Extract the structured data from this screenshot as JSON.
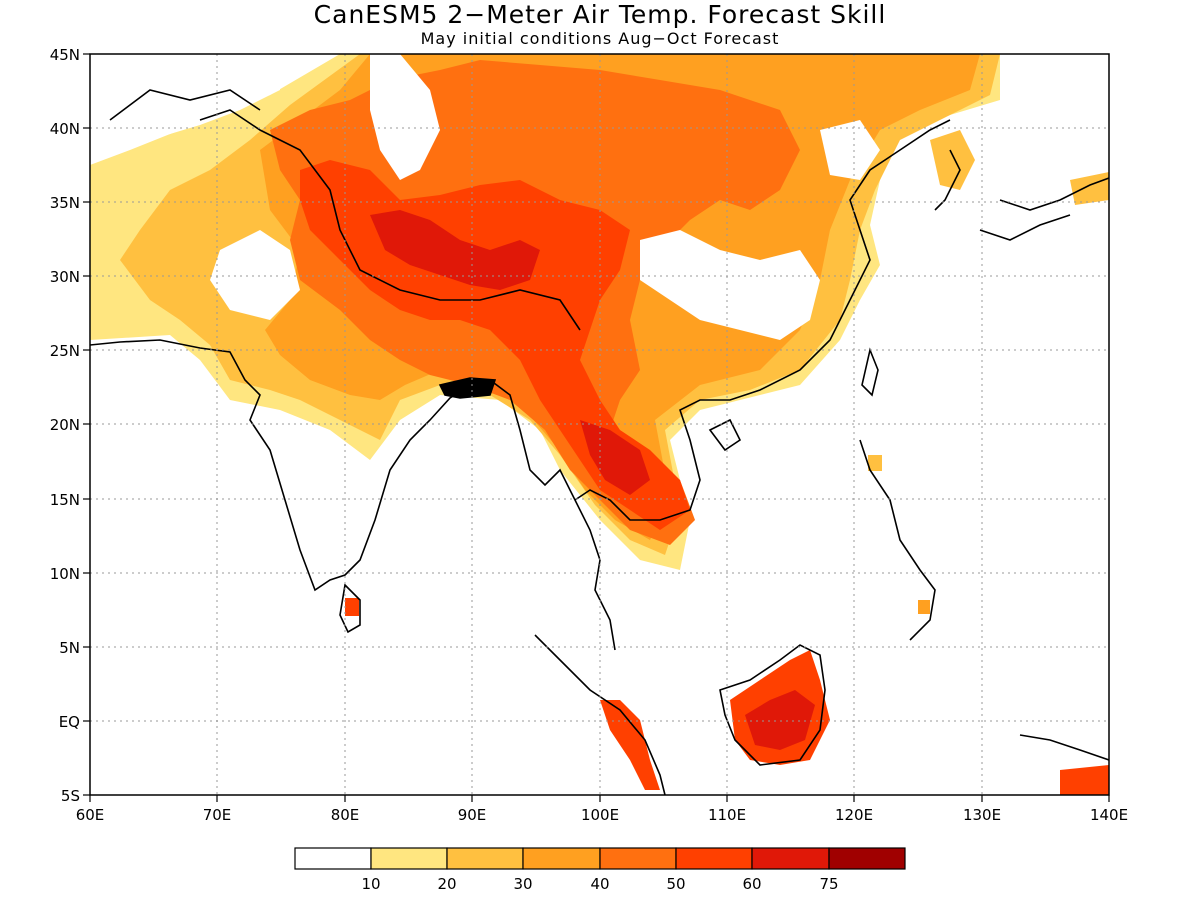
{
  "map": {
    "title": "CanESM5 2−Meter Air Temp. Forecast Skill",
    "subtitle": "May initial conditions  Aug−Oct Forecast",
    "lon_range": [
      60,
      140
    ],
    "lat_range": [
      -5,
      45
    ],
    "lon_ticks": [
      "60E",
      "70E",
      "80E",
      "90E",
      "100E",
      "110E",
      "120E",
      "130E",
      "140E"
    ],
    "lat_ticks": [
      "45N",
      "40N",
      "35N",
      "30N",
      "25N",
      "20N",
      "15N",
      "10N",
      "5N",
      "EQ",
      "5S"
    ],
    "grid": true,
    "colorbar": {
      "labels": [
        "10",
        "20",
        "30",
        "40",
        "50",
        "60",
        "75"
      ],
      "colors": [
        "#ffffff",
        "#ffe680",
        "#ffc040",
        "#ffa020",
        "#ff7010",
        "#ff4000",
        "#e01808",
        "#a00000"
      ]
    },
    "skill_regions": [
      {
        "name": "tibetan-plateau",
        "level": 5
      },
      {
        "name": "indochina",
        "level": 5
      },
      {
        "name": "borneo",
        "level": 5
      },
      {
        "name": "sumatra",
        "level": 5
      },
      {
        "name": "northern-china",
        "level": 3
      },
      {
        "name": "southern-china",
        "level": 3
      },
      {
        "name": "northern-india",
        "level": 2
      },
      {
        "name": "afghanistan-iran",
        "level": 1
      }
    ]
  }
}
